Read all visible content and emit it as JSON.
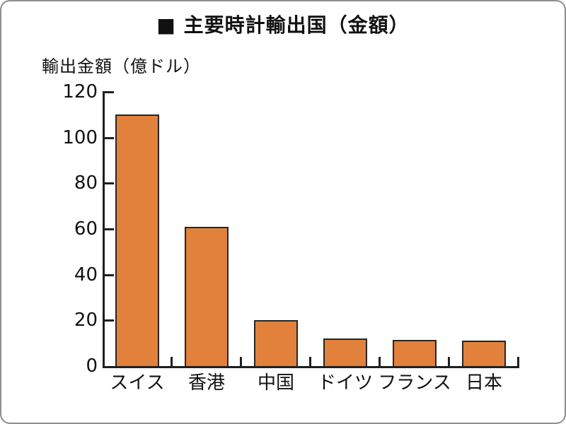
{
  "page": {
    "background": "#ffffff",
    "card_border_color": "#8f8f8f"
  },
  "chart_data": {
    "type": "bar",
    "title": "■ 主要時計輸出国（金額）",
    "ylabel": "輸出金額（億ドル）",
    "xlabel": "",
    "categories": [
      "スイス",
      "香港",
      "中国",
      "ドイツ",
      "フランス",
      "日本"
    ],
    "values": [
      110,
      61,
      20,
      12,
      11.5,
      11
    ],
    "yticks": [
      0,
      20,
      40,
      60,
      80,
      100,
      120
    ],
    "ylim": [
      0,
      120
    ],
    "grid": false,
    "legend": "none",
    "bar_color": "#E1813C",
    "bar_border_color": "#262626",
    "axis_color": "#1f1f1f",
    "text_color": "#111111"
  }
}
